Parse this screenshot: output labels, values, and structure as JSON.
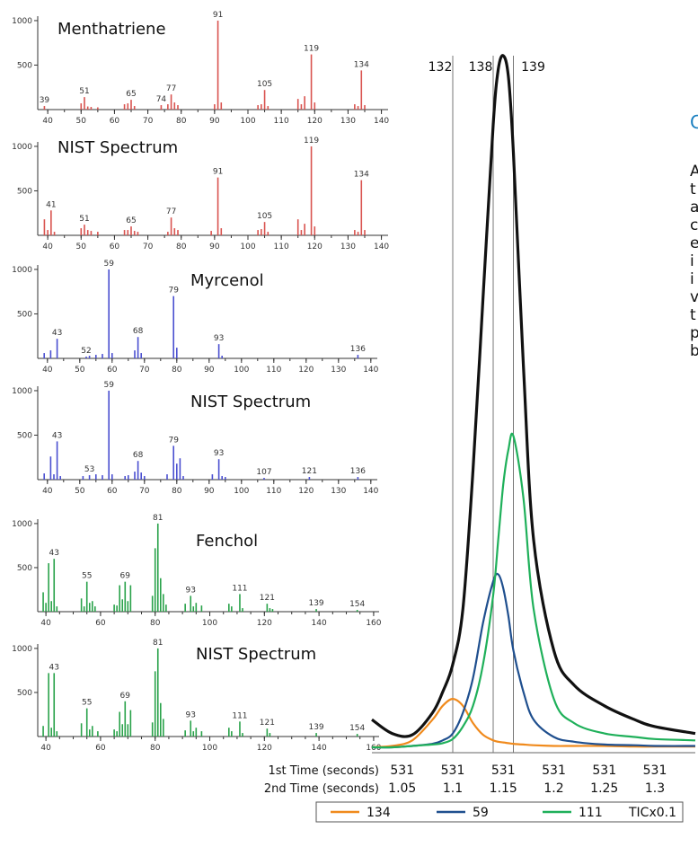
{
  "colors": {
    "red": "#d9534f",
    "blue": "#4a4fd0",
    "green": "#29a24a",
    "ion134": "#f08a1c",
    "ion59": "#1f4f8e",
    "ion111": "#1fb05a",
    "tic": "#111111",
    "heading": "#1a7fc0"
  },
  "side_text": {
    "heading": "C",
    "lines": [
      "A",
      "t",
      "a",
      "c",
      "e",
      "i",
      "i",
      "v",
      "t",
      "p",
      "b"
    ]
  },
  "chart_data": [
    {
      "type": "bar",
      "color": "red",
      "title": "Menthatriene",
      "xlim": [
        37,
        142
      ],
      "ylim": [
        0,
        1050
      ],
      "xticks": [
        40,
        50,
        60,
        70,
        80,
        90,
        100,
        110,
        120,
        130,
        140
      ],
      "yticks": [
        500,
        1000
      ],
      "peaks": [
        [
          39,
          40
        ],
        [
          50,
          70
        ],
        [
          51,
          140
        ],
        [
          52,
          35
        ],
        [
          53,
          30
        ],
        [
          55,
          25
        ],
        [
          63,
          60
        ],
        [
          64,
          70
        ],
        [
          65,
          110
        ],
        [
          66,
          40
        ],
        [
          74,
          50
        ],
        [
          76,
          60
        ],
        [
          77,
          170
        ],
        [
          78,
          80
        ],
        [
          79,
          50
        ],
        [
          90,
          60
        ],
        [
          91,
          1000
        ],
        [
          92,
          80
        ],
        [
          103,
          50
        ],
        [
          104,
          60
        ],
        [
          105,
          220
        ],
        [
          106,
          40
        ],
        [
          115,
          120
        ],
        [
          116,
          60
        ],
        [
          117,
          150
        ],
        [
          119,
          620
        ],
        [
          120,
          80
        ],
        [
          132,
          60
        ],
        [
          133,
          40
        ],
        [
          134,
          440
        ],
        [
          135,
          50
        ]
      ],
      "labels": [
        [
          39,
          39
        ],
        [
          51,
          51
        ],
        [
          65,
          65
        ],
        [
          74,
          74
        ],
        [
          77,
          77
        ],
        [
          91,
          91
        ],
        [
          105,
          105
        ],
        [
          119,
          119
        ],
        [
          134,
          134
        ]
      ]
    },
    {
      "type": "bar",
      "color": "red",
      "title": "NIST Spectrum",
      "xlim": [
        37,
        142
      ],
      "ylim": [
        0,
        1050
      ],
      "xticks": [
        40,
        50,
        60,
        70,
        80,
        90,
        100,
        110,
        120,
        130,
        140
      ],
      "yticks": [
        500,
        1000
      ],
      "peaks": [
        [
          39,
          180
        ],
        [
          40,
          60
        ],
        [
          41,
          280
        ],
        [
          42,
          40
        ],
        [
          50,
          80
        ],
        [
          51,
          120
        ],
        [
          52,
          60
        ],
        [
          53,
          50
        ],
        [
          55,
          40
        ],
        [
          63,
          60
        ],
        [
          64,
          60
        ],
        [
          65,
          100
        ],
        [
          66,
          50
        ],
        [
          67,
          40
        ],
        [
          76,
          40
        ],
        [
          77,
          200
        ],
        [
          78,
          80
        ],
        [
          79,
          60
        ],
        [
          89,
          50
        ],
        [
          91,
          650
        ],
        [
          92,
          80
        ],
        [
          103,
          60
        ],
        [
          104,
          70
        ],
        [
          105,
          150
        ],
        [
          106,
          40
        ],
        [
          115,
          180
        ],
        [
          116,
          60
        ],
        [
          117,
          130
        ],
        [
          119,
          1000
        ],
        [
          120,
          100
        ],
        [
          132,
          60
        ],
        [
          133,
          40
        ],
        [
          134,
          620
        ],
        [
          135,
          60
        ]
      ],
      "labels": [
        [
          41,
          41
        ],
        [
          51,
          51
        ],
        [
          65,
          65
        ],
        [
          77,
          77
        ],
        [
          91,
          91
        ],
        [
          105,
          105
        ],
        [
          119,
          119
        ],
        [
          134,
          134
        ]
      ]
    },
    {
      "type": "bar",
      "color": "blue",
      "title": "Myrcenol",
      "xlim": [
        37,
        142
      ],
      "ylim": [
        0,
        1050
      ],
      "xticks": [
        40,
        50,
        60,
        70,
        80,
        90,
        100,
        110,
        120,
        130,
        140
      ],
      "yticks": [
        500,
        1000
      ],
      "peaks": [
        [
          39,
          60
        ],
        [
          41,
          90
        ],
        [
          43,
          220
        ],
        [
          52,
          20
        ],
        [
          53,
          30
        ],
        [
          55,
          40
        ],
        [
          57,
          50
        ],
        [
          59,
          1000
        ],
        [
          60,
          60
        ],
        [
          67,
          90
        ],
        [
          68,
          240
        ],
        [
          69,
          60
        ],
        [
          79,
          700
        ],
        [
          80,
          120
        ],
        [
          93,
          160
        ],
        [
          94,
          30
        ],
        [
          136,
          40
        ]
      ],
      "labels": [
        [
          43,
          43
        ],
        [
          52,
          52
        ],
        [
          59,
          59
        ],
        [
          68,
          68
        ],
        [
          79,
          79
        ],
        [
          93,
          93
        ],
        [
          136,
          136
        ]
      ]
    },
    {
      "type": "bar",
      "color": "blue",
      "title": "NIST Spectrum",
      "xlim": [
        37,
        142
      ],
      "ylim": [
        0,
        1050
      ],
      "xticks": [
        40,
        50,
        60,
        70,
        80,
        90,
        100,
        110,
        120,
        130,
        140
      ],
      "yticks": [
        500,
        1000
      ],
      "peaks": [
        [
          39,
          70
        ],
        [
          41,
          260
        ],
        [
          42,
          60
        ],
        [
          43,
          430
        ],
        [
          44,
          40
        ],
        [
          51,
          40
        ],
        [
          53,
          50
        ],
        [
          55,
          60
        ],
        [
          57,
          50
        ],
        [
          59,
          1000
        ],
        [
          60,
          60
        ],
        [
          64,
          40
        ],
        [
          65,
          50
        ],
        [
          67,
          90
        ],
        [
          68,
          210
        ],
        [
          69,
          80
        ],
        [
          70,
          40
        ],
        [
          77,
          60
        ],
        [
          79,
          380
        ],
        [
          80,
          180
        ],
        [
          81,
          240
        ],
        [
          82,
          40
        ],
        [
          91,
          60
        ],
        [
          93,
          230
        ],
        [
          94,
          40
        ],
        [
          95,
          30
        ],
        [
          107,
          20
        ],
        [
          121,
          30
        ],
        [
          136,
          30
        ]
      ],
      "labels": [
        [
          43,
          43
        ],
        [
          53,
          53
        ],
        [
          59,
          59
        ],
        [
          68,
          68
        ],
        [
          79,
          79
        ],
        [
          93,
          93
        ],
        [
          107,
          107
        ],
        [
          121,
          121
        ],
        [
          136,
          136
        ]
      ]
    },
    {
      "type": "bar",
      "color": "green",
      "title": "Fenchol",
      "xlim": [
        37,
        162
      ],
      "ylim": [
        0,
        1050
      ],
      "xticks": [
        40,
        60,
        80,
        100,
        120,
        140,
        160
      ],
      "yticks": [
        500,
        1000
      ],
      "peaks": [
        [
          39,
          220
        ],
        [
          40,
          100
        ],
        [
          41,
          550
        ],
        [
          42,
          120
        ],
        [
          43,
          600
        ],
        [
          44,
          60
        ],
        [
          53,
          150
        ],
        [
          54,
          60
        ],
        [
          55,
          340
        ],
        [
          56,
          100
        ],
        [
          57,
          120
        ],
        [
          58,
          60
        ],
        [
          65,
          80
        ],
        [
          66,
          70
        ],
        [
          67,
          300
        ],
        [
          68,
          140
        ],
        [
          69,
          340
        ],
        [
          70,
          120
        ],
        [
          71,
          300
        ],
        [
          79,
          180
        ],
        [
          80,
          720
        ],
        [
          81,
          1000
        ],
        [
          82,
          380
        ],
        [
          83,
          200
        ],
        [
          84,
          80
        ],
        [
          91,
          90
        ],
        [
          93,
          180
        ],
        [
          94,
          60
        ],
        [
          95,
          100
        ],
        [
          97,
          70
        ],
        [
          107,
          90
        ],
        [
          108,
          60
        ],
        [
          111,
          200
        ],
        [
          112,
          40
        ],
        [
          121,
          90
        ],
        [
          122,
          40
        ],
        [
          123,
          30
        ],
        [
          139,
          30
        ],
        [
          154,
          20
        ]
      ],
      "labels": [
        [
          43,
          43
        ],
        [
          55,
          55
        ],
        [
          69,
          69
        ],
        [
          81,
          81
        ],
        [
          93,
          93
        ],
        [
          111,
          111
        ],
        [
          121,
          121
        ],
        [
          139,
          139
        ],
        [
          154,
          154
        ]
      ]
    },
    {
      "type": "bar",
      "color": "green",
      "title": "NIST Spectrum",
      "xlim": [
        37,
        162
      ],
      "ylim": [
        0,
        1050
      ],
      "xticks": [
        40,
        60,
        80,
        100,
        120,
        140,
        160
      ],
      "yticks": [
        500,
        1000
      ],
      "peaks": [
        [
          39,
          120
        ],
        [
          41,
          720
        ],
        [
          42,
          100
        ],
        [
          43,
          720
        ],
        [
          44,
          60
        ],
        [
          53,
          150
        ],
        [
          55,
          320
        ],
        [
          56,
          80
        ],
        [
          57,
          120
        ],
        [
          59,
          60
        ],
        [
          65,
          80
        ],
        [
          66,
          60
        ],
        [
          67,
          280
        ],
        [
          68,
          140
        ],
        [
          69,
          400
        ],
        [
          70,
          140
        ],
        [
          71,
          300
        ],
        [
          79,
          160
        ],
        [
          80,
          740
        ],
        [
          81,
          1000
        ],
        [
          82,
          380
        ],
        [
          83,
          200
        ],
        [
          91,
          70
        ],
        [
          93,
          180
        ],
        [
          94,
          60
        ],
        [
          95,
          100
        ],
        [
          97,
          60
        ],
        [
          107,
          100
        ],
        [
          108,
          60
        ],
        [
          111,
          170
        ],
        [
          112,
          40
        ],
        [
          121,
          90
        ],
        [
          122,
          40
        ],
        [
          139,
          40
        ],
        [
          154,
          30
        ]
      ],
      "labels": [
        [
          43,
          43
        ],
        [
          55,
          55
        ],
        [
          69,
          69
        ],
        [
          81,
          81
        ],
        [
          93,
          93
        ],
        [
          111,
          111
        ],
        [
          121,
          121
        ],
        [
          139,
          139
        ],
        [
          154,
          154
        ]
      ]
    },
    {
      "type": "line",
      "x": [
        1.02,
        1.04,
        1.06,
        1.08,
        1.09,
        1.1,
        1.11,
        1.12,
        1.13,
        1.14,
        1.145,
        1.15,
        1.155,
        1.16,
        1.17,
        1.18,
        1.2,
        1.22,
        1.25,
        1.28,
        1.3,
        1.34
      ],
      "xlim": [
        1.02,
        1.34
      ],
      "ylim": [
        0,
        1
      ],
      "x_axis_rows": [
        {
          "label": "1st Time (seconds)",
          "values": [
            "531",
            "531",
            "531",
            "531",
            "531",
            "531"
          ]
        },
        {
          "label": "2nd Time (seconds)",
          "values": [
            "1.05",
            "1.1",
            "1.15",
            "1.2",
            "1.25",
            "1.3"
          ]
        }
      ],
      "x_axis_row_positions": [
        1.05,
        1.1,
        1.15,
        1.2,
        1.25,
        1.3
      ],
      "markers": [
        {
          "label": "132",
          "x": 1.1
        },
        {
          "label": "138",
          "x": 1.14
        },
        {
          "label": "139",
          "x": 1.16
        }
      ],
      "series": [
        {
          "name": "134",
          "color": "ion134",
          "values": [
            0.0,
            0.002,
            0.01,
            0.04,
            0.06,
            0.07,
            0.06,
            0.035,
            0.018,
            0.01,
            0.008,
            0.007,
            0.006,
            0.005,
            0.004,
            0.003,
            0.002,
            0.002,
            0.002,
            0.001,
            0.001,
            0.001
          ]
        },
        {
          "name": "59",
          "color": "ion59",
          "values": [
            0.0,
            0.0,
            0.002,
            0.005,
            0.01,
            0.02,
            0.05,
            0.1,
            0.18,
            0.24,
            0.25,
            0.23,
            0.19,
            0.14,
            0.08,
            0.04,
            0.015,
            0.008,
            0.004,
            0.003,
            0.002,
            0.002
          ]
        },
        {
          "name": "111",
          "color": "ion111",
          "values": [
            0.0,
            0.0,
            0.002,
            0.004,
            0.006,
            0.012,
            0.03,
            0.06,
            0.12,
            0.22,
            0.3,
            0.38,
            0.43,
            0.45,
            0.36,
            0.2,
            0.07,
            0.035,
            0.02,
            0.015,
            0.012,
            0.01
          ]
        },
        {
          "name": "TICx0.1",
          "color": "tic",
          "values": [
            0.04,
            0.02,
            0.018,
            0.05,
            0.08,
            0.12,
            0.2,
            0.4,
            0.65,
            0.9,
            0.98,
            1.0,
            0.97,
            0.86,
            0.55,
            0.3,
            0.14,
            0.09,
            0.06,
            0.04,
            0.03,
            0.02
          ]
        }
      ]
    }
  ]
}
